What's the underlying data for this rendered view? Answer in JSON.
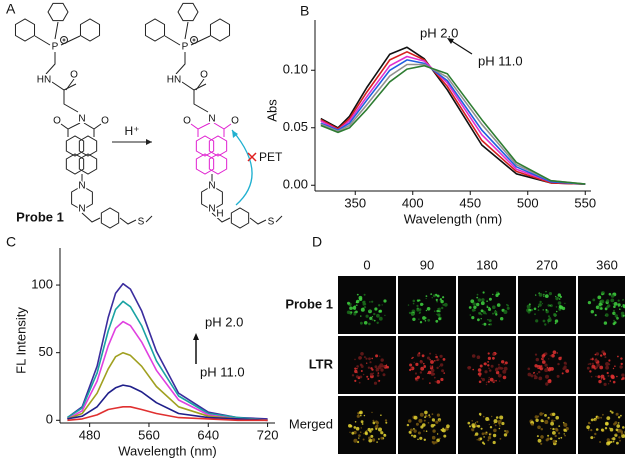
{
  "panel_labels": [
    "A",
    "B",
    "C",
    "D"
  ],
  "scheme": {
    "reagent": "H⁺",
    "pet": "PET",
    "probe": "Probe 1",
    "left_atoms": [
      "P",
      "HN",
      "O",
      "O",
      "N",
      "O",
      "N",
      "N",
      "S"
    ],
    "right_atoms": [
      "P",
      "HN",
      "O",
      "O",
      "N",
      "O",
      "N",
      "N",
      "H",
      "S"
    ]
  },
  "chart_data": [
    {
      "type": "line",
      "x_label": "Wavelength (nm)",
      "y_label": "Abs",
      "annotations": [
        "pH 2.0",
        "pH 11.0"
      ],
      "x": [
        320,
        335,
        345,
        360,
        380,
        395,
        410,
        430,
        460,
        490,
        520,
        550
      ],
      "series": [
        {
          "color": "#111111",
          "values": [
            0.058,
            0.05,
            0.06,
            0.085,
            0.114,
            0.12,
            0.11,
            0.083,
            0.035,
            0.01,
            0.002,
            0.001
          ]
        },
        {
          "color": "#d62020",
          "values": [
            0.057,
            0.049,
            0.058,
            0.081,
            0.109,
            0.116,
            0.109,
            0.086,
            0.039,
            0.012,
            0.002,
            0.001
          ]
        },
        {
          "color": "#e030d0",
          "values": [
            0.056,
            0.048,
            0.056,
            0.077,
            0.104,
            0.112,
            0.108,
            0.089,
            0.044,
            0.014,
            0.003,
            0.001
          ]
        },
        {
          "color": "#2060e0",
          "values": [
            0.054,
            0.048,
            0.054,
            0.074,
            0.1,
            0.109,
            0.106,
            0.091,
            0.048,
            0.016,
            0.003,
            0.001
          ]
        },
        {
          "color": "#909090",
          "values": [
            0.053,
            0.047,
            0.052,
            0.07,
            0.095,
            0.105,
            0.105,
            0.094,
            0.053,
            0.018,
            0.004,
            0.001
          ]
        },
        {
          "color": "#2e7d32",
          "values": [
            0.052,
            0.046,
            0.05,
            0.066,
            0.09,
            0.101,
            0.104,
            0.097,
            0.057,
            0.02,
            0.004,
            0.001
          ]
        }
      ],
      "xlim": [
        315,
        555
      ],
      "ylim": [
        -0.005,
        0.135
      ],
      "xticks": [
        350,
        400,
        450,
        500,
        550
      ],
      "yticks": [
        {
          "value": 0,
          "label": "0.00"
        },
        {
          "value": 0.05,
          "label": "0.05"
        },
        {
          "value": 0.1,
          "label": "0.10"
        }
      ]
    },
    {
      "type": "line",
      "x_label": "Wavelength (nm)",
      "y_label": "FL Intensity",
      "annotations": [
        "pH 2.0",
        "pH 11.0"
      ],
      "x": [
        450,
        470,
        490,
        505,
        515,
        525,
        535,
        550,
        570,
        600,
        640,
        680,
        720
      ],
      "series": [
        {
          "color": "#3b2d9e",
          "values": [
            2,
            10,
            40,
            76,
            94,
            101,
            97,
            81,
            51,
            20,
            6,
            2,
            1
          ]
        },
        {
          "color": "#1aa3a3",
          "values": [
            2,
            9,
            35,
            66,
            82,
            88,
            84,
            70,
            44,
            18,
            5,
            2,
            0
          ]
        },
        {
          "color": "#e040e0",
          "values": [
            1,
            7,
            29,
            55,
            68,
            73,
            70,
            58,
            37,
            15,
            4,
            1,
            0
          ]
        },
        {
          "color": "#a0a020",
          "values": [
            1,
            5,
            20,
            38,
            47,
            50,
            48,
            40,
            25,
            10,
            3,
            1,
            0
          ]
        },
        {
          "color": "#1f1f8a",
          "values": [
            1,
            3,
            10,
            20,
            24,
            26,
            25,
            21,
            13,
            5,
            2,
            1,
            0
          ]
        },
        {
          "color": "#e03030",
          "values": [
            0,
            1,
            4,
            8,
            9,
            10,
            10,
            8,
            5,
            2,
            1,
            0,
            0
          ]
        }
      ],
      "xlim": [
        440,
        730
      ],
      "ylim": [
        -2,
        120
      ],
      "xticks": [
        480,
        560,
        640,
        720
      ],
      "yticks": [
        0,
        50,
        100
      ]
    }
  ],
  "imaging": {
    "columns": [
      "0",
      "90",
      "180",
      "270",
      "360"
    ],
    "rows": [
      "Probe 1",
      "LTR",
      "Merged"
    ]
  }
}
